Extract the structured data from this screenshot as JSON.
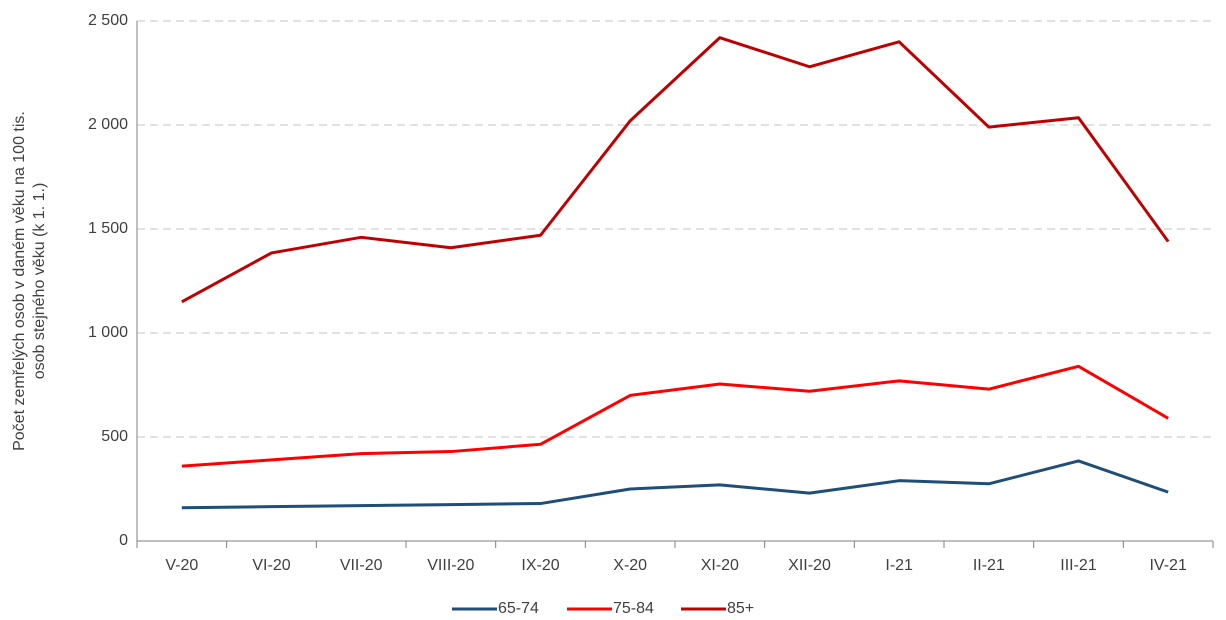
{
  "chart_data": {
    "type": "line",
    "ylabel": [
      "Počet zemřelých osob v daném věku na 100 tis.",
      "osob stejného věku (k 1. 1.)"
    ],
    "categories": [
      "V-20",
      "VI-20",
      "VII-20",
      "VIII-20",
      "IX-20",
      "X-20",
      "XI-20",
      "XII-20",
      "I-21",
      "II-21",
      "III-21",
      "IV-21"
    ],
    "series": [
      {
        "name": "65-74",
        "color": "#1f4e79",
        "values": [
          160,
          165,
          170,
          175,
          180,
          250,
          270,
          230,
          290,
          275,
          385,
          235
        ]
      },
      {
        "name": "75-84",
        "color": "#ff0000",
        "values": [
          360,
          390,
          420,
          430,
          465,
          700,
          755,
          720,
          770,
          730,
          840,
          590
        ]
      },
      {
        "name": "85+",
        "color": "#c00000",
        "values": [
          1150,
          1385,
          1460,
          1410,
          1470,
          2020,
          2420,
          2280,
          2400,
          1990,
          2035,
          1440
        ]
      }
    ],
    "ylim": [
      0,
      2500
    ],
    "yticks": [
      0,
      500,
      {
        "value": 1000,
        "label": "1 000"
      },
      {
        "value": 1500,
        "label": "1 500"
      },
      {
        "value": 2000,
        "label": "2 000"
      },
      {
        "value": 2500,
        "label": "2 500"
      }
    ],
    "grid": true,
    "legend": "bottom"
  }
}
